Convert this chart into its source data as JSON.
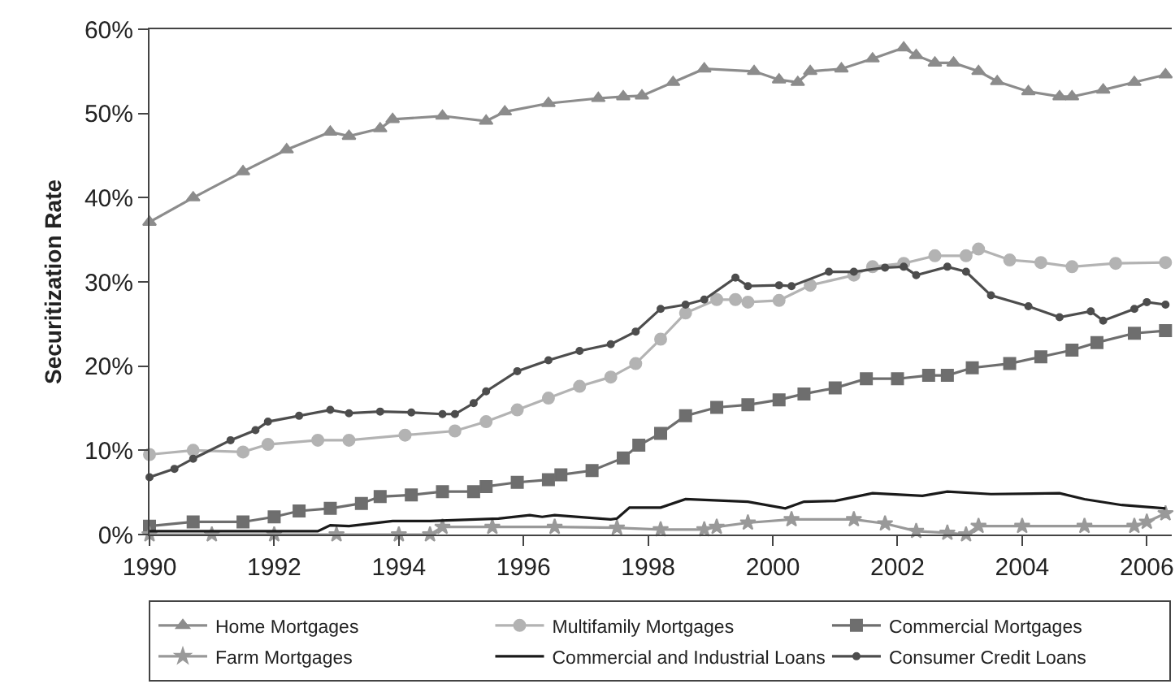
{
  "chart_data": {
    "type": "line",
    "ylabel": "Securitization Rate",
    "xlim": [
      1990,
      2006.4
    ],
    "xticks": [
      1990,
      1992,
      1994,
      1996,
      1998,
      2000,
      2002,
      2004,
      2006
    ],
    "ylim": [
      0,
      60
    ],
    "yticks": [
      {
        "value": 0,
        "label": "0%"
      },
      {
        "value": 10,
        "label": "10%"
      },
      {
        "value": 20,
        "label": "20%"
      },
      {
        "value": 30,
        "label": "30%"
      },
      {
        "value": 40,
        "label": "40%"
      },
      {
        "value": 50,
        "label": "50%"
      },
      {
        "value": 60,
        "label": "60%"
      }
    ],
    "grid": false,
    "legend": "bottom",
    "line_style": "solid",
    "series": [
      {
        "name": "Home Mortgages",
        "color": "#8c8c8c",
        "marker": "triangle",
        "x": [
          1990,
          1990.7,
          1991.5,
          1992.2,
          1992.9,
          1993.2,
          1993.7,
          1993.9,
          1994.7,
          1995.4,
          1995.7,
          1996.4,
          1997.2,
          1997.6,
          1997.9,
          1998.4,
          1998.9,
          1999.7,
          2000.1,
          2000.4,
          2000.6,
          2001.1,
          2001.6,
          2002.1,
          2002.3,
          2002.6,
          2002.9,
          2003.3,
          2003.6,
          2004.1,
          2004.6,
          2004.8,
          2005.3,
          2005.8,
          2006.3
        ],
        "values": [
          37.1,
          40.0,
          43.1,
          45.7,
          47.8,
          47.3,
          48.2,
          49.3,
          49.7,
          49.1,
          50.2,
          51.2,
          51.8,
          52.0,
          52.1,
          53.7,
          55.3,
          55.0,
          54.0,
          53.7,
          55.0,
          55.3,
          56.5,
          57.8,
          56.9,
          56.0,
          56.0,
          55.0,
          53.8,
          52.6,
          52.0,
          52.0,
          52.8,
          53.7,
          54.6
        ]
      },
      {
        "name": "Multifamily Mortgages",
        "color": "#b3b3b3",
        "marker": "circle",
        "x": [
          1990,
          1990.7,
          1991.5,
          1991.9,
          1992.7,
          1993.2,
          1994.1,
          1994.9,
          1995.4,
          1995.9,
          1996.4,
          1996.9,
          1997.4,
          1997.8,
          1998.2,
          1998.6,
          1999.1,
          1999.4,
          1999.6,
          2000.1,
          2000.6,
          2001.3,
          2001.6,
          2002.1,
          2002.6,
          2003.1,
          2003.3,
          2003.8,
          2004.3,
          2004.8,
          2005.5,
          2006.3
        ],
        "values": [
          9.5,
          10.0,
          9.8,
          10.7,
          11.2,
          11.2,
          11.8,
          12.3,
          13.4,
          14.8,
          16.2,
          17.6,
          18.7,
          20.3,
          23.2,
          26.3,
          27.9,
          27.9,
          27.6,
          27.8,
          29.6,
          30.8,
          31.8,
          32.2,
          33.1,
          33.1,
          33.9,
          32.6,
          32.3,
          31.8,
          32.2,
          32.3
        ]
      },
      {
        "name": "Commercial Mortgages",
        "color": "#6e6e6e",
        "marker": "square",
        "x": [
          1990,
          1990.7,
          1991.5,
          1992,
          1992.4,
          1992.9,
          1993.4,
          1993.7,
          1994.2,
          1994.7,
          1995.2,
          1995.4,
          1995.9,
          1996.4,
          1996.6,
          1997.1,
          1997.6,
          1997.85,
          1998.2,
          1998.6,
          1999.1,
          1999.6,
          2000.1,
          2000.5,
          2001.0,
          2001.5,
          2002.0,
          2002.5,
          2002.8,
          2003.2,
          2003.8,
          2004.3,
          2004.8,
          2005.2,
          2005.8,
          2006.3
        ],
        "values": [
          1.0,
          1.5,
          1.5,
          2.1,
          2.8,
          3.1,
          3.7,
          4.5,
          4.7,
          5.1,
          5.1,
          5.7,
          6.2,
          6.5,
          7.1,
          7.6,
          9.1,
          10.6,
          12.0,
          14.1,
          15.1,
          15.4,
          16.0,
          16.7,
          17.4,
          18.5,
          18.5,
          18.9,
          18.9,
          19.8,
          20.3,
          21.1,
          21.9,
          22.8,
          23.9,
          24.2
        ]
      },
      {
        "name": "Farm Mortgages",
        "color": "#999999",
        "marker": "star",
        "x": [
          1990,
          1991,
          1992,
          1993,
          1994,
          1994.5,
          1994.7,
          1995.5,
          1996.5,
          1997.5,
          1998.2,
          1998.9,
          1999.1,
          1999.6,
          2000.3,
          2001.3,
          2001.8,
          2002.3,
          2002.8,
          2003.1,
          2003.3,
          2004,
          2005,
          2005.8,
          2006.0,
          2006.3
        ],
        "values": [
          0,
          0,
          0,
          0,
          0,
          0,
          0.9,
          0.9,
          0.9,
          0.8,
          0.6,
          0.6,
          0.9,
          1.4,
          1.8,
          1.8,
          1.3,
          0.4,
          0.2,
          0,
          1.0,
          1.0,
          1.0,
          1.0,
          1.5,
          2.5
        ]
      },
      {
        "name": "Commercial and Industrial Loans",
        "color": "#1a1a1a",
        "marker": "none",
        "x": [
          1990,
          1992.7,
          1992.9,
          1993.2,
          1993.9,
          1994.5,
          1995.6,
          1996.1,
          1996.3,
          1996.5,
          1997.4,
          1997.5,
          1997.7,
          1998.2,
          1998.6,
          1999.6,
          2000.2,
          2000.5,
          2001.0,
          2001.6,
          2002.4,
          2002.8,
          2003.5,
          2004.6,
          2005.0,
          2005.6,
          2006.3
        ],
        "values": [
          0.4,
          0.4,
          1.1,
          1.0,
          1.6,
          1.6,
          1.9,
          2.3,
          2.1,
          2.3,
          1.8,
          1.9,
          3.2,
          3.2,
          4.2,
          3.9,
          3.1,
          3.9,
          4.0,
          4.9,
          4.6,
          5.1,
          4.8,
          4.9,
          4.2,
          3.5,
          3.1
        ]
      },
      {
        "name": "Consumer Credit Loans",
        "color": "#4d4d4d",
        "marker": "circle",
        "x": [
          1990,
          1990.4,
          1990.7,
          1991.3,
          1991.7,
          1991.9,
          1992.4,
          1992.9,
          1993.2,
          1993.7,
          1994.2,
          1994.7,
          1994.9,
          1995.2,
          1995.4,
          1995.9,
          1996.4,
          1996.9,
          1997.4,
          1997.8,
          1998.2,
          1998.6,
          1998.9,
          1999.4,
          1999.6,
          2000.1,
          2000.3,
          2000.9,
          2001.3,
          2001.8,
          2002.1,
          2002.3,
          2002.8,
          2003.1,
          2003.5,
          2004.1,
          2004.6,
          2005.1,
          2005.3,
          2005.8,
          2006.0,
          2006.3
        ],
        "values": [
          6.8,
          7.8,
          9.0,
          11.2,
          12.4,
          13.4,
          14.1,
          14.8,
          14.4,
          14.6,
          14.5,
          14.3,
          14.3,
          15.6,
          17.0,
          19.4,
          20.7,
          21.8,
          22.6,
          24.1,
          26.8,
          27.3,
          27.9,
          30.5,
          29.5,
          29.6,
          29.5,
          31.2,
          31.2,
          31.7,
          31.8,
          30.8,
          31.8,
          31.2,
          28.4,
          27.1,
          25.8,
          26.5,
          25.4,
          26.8,
          27.6,
          27.3
        ]
      }
    ]
  }
}
